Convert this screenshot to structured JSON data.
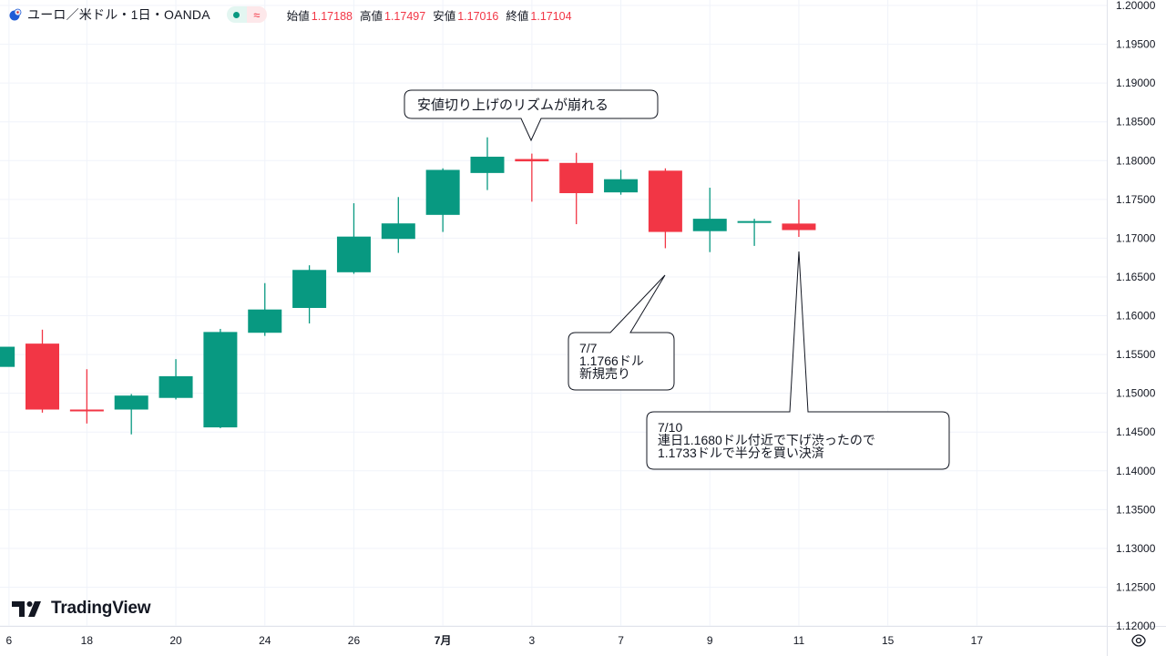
{
  "header": {
    "symbol": "ユーロ／米ドル・1日・OANDA",
    "ohlc": [
      {
        "label": "始値",
        "value": "1.17188"
      },
      {
        "label": "高値",
        "value": "1.17497"
      },
      {
        "label": "安値",
        "value": "1.17016"
      },
      {
        "label": "終値",
        "value": "1.17104"
      }
    ],
    "wave_symbol": "≈"
  },
  "brand": "TradingView",
  "colors": {
    "up": "#089981",
    "down": "#f23645",
    "grid": "#f0f3fa",
    "text": "#131722"
  },
  "chart_data": {
    "type": "candlestick",
    "ylim": [
      1.12,
      1.2
    ],
    "y_ticks": [
      "1.20000",
      "1.19500",
      "1.19000",
      "1.18500",
      "1.18000",
      "1.17500",
      "1.17000",
      "1.16500",
      "1.16000",
      "1.15500",
      "1.15000",
      "1.14500",
      "1.14000",
      "1.13500",
      "1.13000",
      "1.12500",
      "1.12000"
    ],
    "x_ticks": [
      {
        "label": "6",
        "slot": -0.75
      },
      {
        "label": "18",
        "slot": 1
      },
      {
        "label": "20",
        "slot": 3
      },
      {
        "label": "24",
        "slot": 5
      },
      {
        "label": "26",
        "slot": 7
      },
      {
        "label": "7月",
        "slot": 9,
        "bold": true
      },
      {
        "label": "3",
        "slot": 11
      },
      {
        "label": "7",
        "slot": 13
      },
      {
        "label": "9",
        "slot": 15
      },
      {
        "label": "11",
        "slot": 17
      },
      {
        "label": "15",
        "slot": 19
      },
      {
        "label": "17",
        "slot": 21
      }
    ],
    "candles": [
      {
        "slot": -1,
        "open": 1.1534,
        "high": 1.1562,
        "low": 1.1532,
        "close": 1.156
      },
      {
        "slot": 0,
        "open": 1.1564,
        "high": 1.1582,
        "low": 1.1475,
        "close": 1.1479
      },
      {
        "slot": 1,
        "open": 1.1479,
        "high": 1.1531,
        "low": 1.1461,
        "close": 1.1478
      },
      {
        "slot": 2,
        "open": 1.1479,
        "high": 1.1499,
        "low": 1.1447,
        "close": 1.1497
      },
      {
        "slot": 3,
        "open": 1.1494,
        "high": 1.1544,
        "low": 1.1492,
        "close": 1.1522
      },
      {
        "slot": 4,
        "open": 1.1456,
        "high": 1.1583,
        "low": 1.1455,
        "close": 1.1579
      },
      {
        "slot": 5,
        "open": 1.1578,
        "high": 1.1642,
        "low": 1.1574,
        "close": 1.1608
      },
      {
        "slot": 6,
        "open": 1.161,
        "high": 1.1665,
        "low": 1.159,
        "close": 1.1659
      },
      {
        "slot": 7,
        "open": 1.1656,
        "high": 1.1745,
        "low": 1.1654,
        "close": 1.1702
      },
      {
        "slot": 8,
        "open": 1.1699,
        "high": 1.1753,
        "low": 1.1681,
        "close": 1.1719
      },
      {
        "slot": 9,
        "open": 1.173,
        "high": 1.179,
        "low": 1.1708,
        "close": 1.1788
      },
      {
        "slot": 10,
        "open": 1.1784,
        "high": 1.183,
        "low": 1.1762,
        "close": 1.1805
      },
      {
        "slot": 11,
        "open": 1.1802,
        "high": 1.1809,
        "low": 1.1747,
        "close": 1.1799
      },
      {
        "slot": 12,
        "open": 1.1797,
        "high": 1.181,
        "low": 1.1718,
        "close": 1.1758
      },
      {
        "slot": 13,
        "open": 1.1759,
        "high": 1.1788,
        "low": 1.1756,
        "close": 1.1776
      },
      {
        "slot": 14,
        "open": 1.1787,
        "high": 1.179,
        "low": 1.1687,
        "close": 1.1708
      },
      {
        "slot": 15,
        "open": 1.1709,
        "high": 1.1765,
        "low": 1.1682,
        "close": 1.1725
      },
      {
        "slot": 16,
        "open": 1.1722,
        "high": 1.1725,
        "low": 1.169,
        "close": 1.1722
      },
      {
        "slot": 17,
        "open": 1.17188,
        "high": 1.17497,
        "low": 1.17016,
        "close": 1.17104
      }
    ],
    "annotations": [
      {
        "lines": [
          "安値切り上げのリズムが崩れる"
        ]
      },
      {
        "lines": [
          "7/7",
          "1.1766ドル",
          "新規売り"
        ]
      },
      {
        "lines": [
          "7/10",
          "連日1.1680ドル付近で下げ渋ったので",
          "1.1733ドルで半分を買い決済"
        ]
      }
    ]
  }
}
